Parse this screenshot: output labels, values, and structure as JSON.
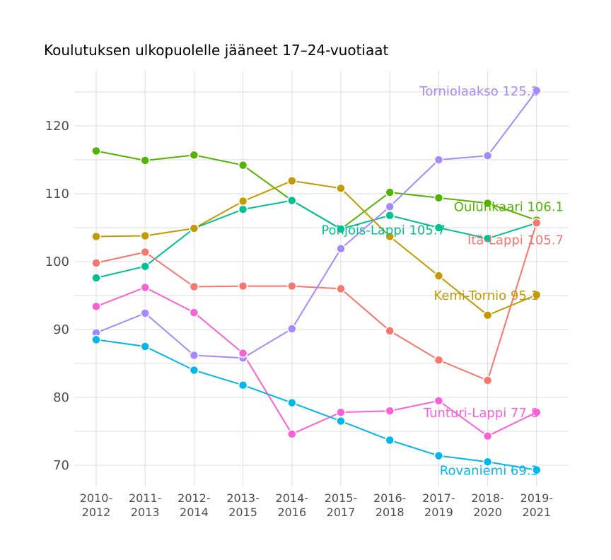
{
  "chart_data": {
    "type": "line",
    "title": "Koulutuksen ulkopuolelle jääneet 17–24-vuotiaat",
    "xlabel": "",
    "ylabel": "",
    "x": [
      "2010-2012",
      "2011-2013",
      "2012-2014",
      "2013-2015",
      "2014-2016",
      "2015-2017",
      "2016-2018",
      "2017-2019",
      "2018-2020",
      "2019-2021"
    ],
    "ylim": [
      65,
      128
    ],
    "yticks": [
      "70",
      "80",
      "90",
      "100",
      "110",
      "120"
    ],
    "grid": true,
    "legend": "end-labels",
    "series": [
      {
        "name": "Oulunkaari",
        "end_label": "Oulunkaari 106.1",
        "color": "#53b400",
        "values": [
          116.3,
          114.9,
          115.7,
          114.2,
          109.0,
          104.8,
          110.2,
          109.4,
          108.6,
          106.1
        ]
      },
      {
        "name": "Pohjois-Lappi",
        "end_label": "Pohjois-Lappi 105.7",
        "color": "#00c094",
        "values": [
          97.6,
          99.3,
          104.9,
          107.7,
          109.0,
          104.8,
          106.8,
          105.0,
          103.4,
          105.7
        ]
      },
      {
        "name": "Itä-Lappi",
        "end_label": "Itä-Lappi 105.7",
        "color": "#f8766d",
        "values": [
          99.8,
          101.4,
          96.3,
          96.4,
          96.4,
          96.0,
          89.8,
          85.5,
          82.5,
          105.7
        ]
      },
      {
        "name": "Torniolaakso",
        "end_label": "Torniolaakso 125.2",
        "color": "#a58aff",
        "values": [
          89.5,
          92.4,
          86.2,
          85.8,
          90.1,
          101.9,
          108.1,
          115.0,
          115.6,
          125.2
        ]
      },
      {
        "name": "Kemi-Tornio",
        "end_label": "Kemi-Tornio 95.1",
        "color": "#c49a00",
        "values": [
          103.7,
          103.8,
          104.9,
          108.9,
          111.9,
          110.8,
          103.7,
          97.9,
          92.1,
          95.1
        ]
      },
      {
        "name": "Tunturi-Lappi",
        "end_label": "Tunturi-Lappi 77.8",
        "color": "#fb61d7",
        "values": [
          93.4,
          96.2,
          92.5,
          86.5,
          74.6,
          77.8,
          78.0,
          79.5,
          74.3,
          77.8
        ]
      },
      {
        "name": "Rovaniemi",
        "end_label": "Rovaniemi 69.3",
        "color": "#00b6eb",
        "values": [
          88.5,
          87.5,
          84.0,
          81.8,
          79.2,
          76.5,
          73.7,
          71.4,
          70.5,
          69.3
        ]
      }
    ]
  }
}
